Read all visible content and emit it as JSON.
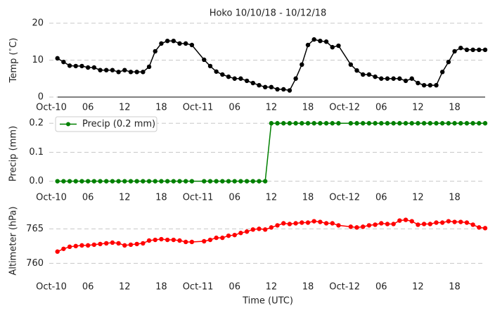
{
  "chart_data": [
    {
      "type": "line",
      "title": "Hoko 10/10/18 - 10/12/18",
      "ylabel": "Temp ($^\\circ$C)",
      "color": "#000000",
      "spine_bottom": true,
      "x": [
        1,
        2,
        3,
        4,
        5,
        6,
        7,
        8,
        9,
        10,
        11,
        12,
        13,
        14,
        15,
        16,
        17,
        18,
        19,
        20,
        21,
        22,
        23,
        25,
        26,
        27,
        28,
        29,
        30,
        31,
        32,
        33,
        34,
        35,
        36,
        37,
        38,
        39,
        40,
        41,
        42,
        43,
        44,
        45,
        46,
        47,
        49,
        50,
        51,
        52,
        53,
        54,
        55,
        56,
        57,
        58,
        59,
        60,
        61,
        62,
        63,
        64,
        65,
        66,
        67,
        68,
        69,
        70,
        71
      ],
      "values": [
        10.5,
        9.5,
        8.5,
        8.4,
        8.4,
        8.0,
        8.0,
        7.3,
        7.3,
        7.3,
        6.8,
        7.3,
        6.8,
        6.8,
        6.8,
        8.2,
        12.4,
        14.5,
        15.2,
        15.2,
        14.5,
        14.5,
        14.1,
        10.1,
        8.4,
        6.9,
        6.1,
        5.5,
        5.0,
        5.0,
        4.4,
        3.8,
        3.2,
        2.7,
        2.7,
        2.1,
        2.1,
        1.8,
        5.0,
        8.8,
        14.1,
        15.6,
        15.2,
        15.0,
        13.5,
        13.9,
        8.8,
        7.2,
        6.1,
        6.1,
        5.5,
        5.0,
        5.0,
        5.0,
        5.0,
        4.4,
        5.0,
        3.8,
        3.2,
        3.2,
        3.2,
        6.8,
        9.5,
        12.4,
        13.3,
        12.8,
        12.8,
        12.8,
        12.8
      ],
      "xlim": [
        0,
        71
      ],
      "xticks": [
        {
          "value": 0,
          "label": "Oct-10"
        },
        {
          "value": 6,
          "label": "06"
        },
        {
          "value": 12,
          "label": "12"
        },
        {
          "value": 18,
          "label": "18"
        },
        {
          "value": 24,
          "label": "Oct-11"
        },
        {
          "value": 30,
          "label": "06"
        },
        {
          "value": 36,
          "label": "12"
        },
        {
          "value": 42,
          "label": "18"
        },
        {
          "value": 48,
          "label": "Oct-12"
        },
        {
          "value": 54,
          "label": "06"
        },
        {
          "value": 60,
          "label": "12"
        },
        {
          "value": 66,
          "label": "18"
        }
      ],
      "ylim": [
        0,
        20
      ],
      "yticks": [
        0,
        10,
        20
      ],
      "grid": true
    },
    {
      "type": "line",
      "ylabel": "Precip (mm)",
      "legend": "upper left",
      "x": [
        1,
        2,
        3,
        4,
        5,
        6,
        7,
        8,
        9,
        10,
        11,
        12,
        13,
        14,
        15,
        16,
        17,
        18,
        19,
        20,
        21,
        22,
        23,
        25,
        26,
        27,
        28,
        29,
        30,
        31,
        32,
        33,
        34,
        35,
        36,
        37,
        38,
        39,
        40,
        41,
        42,
        43,
        44,
        45,
        46,
        47,
        49,
        50,
        51,
        52,
        53,
        54,
        55,
        56,
        57,
        58,
        59,
        60,
        61,
        62,
        63,
        64,
        65,
        66,
        67,
        68,
        69,
        70,
        71
      ],
      "series": [
        {
          "name": "Precip (0.2 mm)",
          "color": "#008000",
          "values": [
            0,
            0,
            0,
            0,
            0,
            0,
            0,
            0,
            0,
            0,
            0,
            0,
            0,
            0,
            0,
            0,
            0,
            0,
            0,
            0,
            0,
            0,
            0,
            0,
            0,
            0,
            0,
            0,
            0,
            0,
            0,
            0,
            0,
            0,
            0.2,
            0.2,
            0.2,
            0.2,
            0.2,
            0.2,
            0.2,
            0.2,
            0.2,
            0.2,
            0.2,
            0.2,
            0.2,
            0.2,
            0.2,
            0.2,
            0.2,
            0.2,
            0.2,
            0.2,
            0.2,
            0.2,
            0.2,
            0.2,
            0.2,
            0.2,
            0.2,
            0.2,
            0.2,
            0.2,
            0.2,
            0.2,
            0.2,
            0.2,
            0.2
          ]
        }
      ],
      "xlim": [
        0,
        71
      ],
      "xticks": [
        {
          "value": 0,
          "label": "Oct-10"
        },
        {
          "value": 6,
          "label": "06"
        },
        {
          "value": 12,
          "label": "12"
        },
        {
          "value": 18,
          "label": "18"
        },
        {
          "value": 24,
          "label": "Oct-11"
        },
        {
          "value": 30,
          "label": "06"
        },
        {
          "value": 36,
          "label": "12"
        },
        {
          "value": 42,
          "label": "18"
        },
        {
          "value": 48,
          "label": "Oct-12"
        },
        {
          "value": 54,
          "label": "06"
        },
        {
          "value": 60,
          "label": "12"
        },
        {
          "value": 66,
          "label": "18"
        }
      ],
      "ylim": [
        -0.03,
        0.22
      ],
      "yticks": [
        {
          "value": 0,
          "label": "0.0"
        },
        {
          "value": 0.1,
          "label": "0.1"
        },
        {
          "value": 0.2,
          "label": "0.2"
        }
      ],
      "grid": true
    },
    {
      "type": "line",
      "ylabel": "Altimeter (hPa)",
      "xlabel": "Time (UTC)",
      "color": "#ff0000",
      "x": [
        1,
        2,
        3,
        4,
        5,
        6,
        7,
        8,
        9,
        10,
        11,
        12,
        13,
        14,
        15,
        16,
        17,
        18,
        19,
        20,
        21,
        22,
        23,
        25,
        26,
        27,
        28,
        29,
        30,
        31,
        32,
        33,
        34,
        35,
        36,
        37,
        38,
        39,
        40,
        41,
        42,
        43,
        44,
        45,
        46,
        47,
        49,
        50,
        51,
        52,
        53,
        54,
        55,
        56,
        57,
        58,
        59,
        60,
        61,
        62,
        63,
        64,
        65,
        66,
        67,
        68,
        69,
        70,
        71
      ],
      "values": [
        761.7,
        762.1,
        762.4,
        762.5,
        762.6,
        762.6,
        762.7,
        762.8,
        762.9,
        763.0,
        762.9,
        762.6,
        762.7,
        762.8,
        762.9,
        763.3,
        763.4,
        763.5,
        763.4,
        763.4,
        763.3,
        763.1,
        763.1,
        763.2,
        763.4,
        763.7,
        763.7,
        764.0,
        764.1,
        764.4,
        764.6,
        764.9,
        765.0,
        764.9,
        765.2,
        765.5,
        765.8,
        765.7,
        765.8,
        765.9,
        765.9,
        766.1,
        766.0,
        765.8,
        765.8,
        765.5,
        765.3,
        765.2,
        765.3,
        765.5,
        765.6,
        765.8,
        765.7,
        765.7,
        766.2,
        766.3,
        766.1,
        765.6,
        765.7,
        765.7,
        765.9,
        765.9,
        766.1,
        766.0,
        766.0,
        765.9,
        765.6,
        765.2,
        765.1
      ],
      "xlim": [
        0,
        71
      ],
      "xticks": [
        {
          "value": 0,
          "label": "Oct-10"
        },
        {
          "value": 6,
          "label": "06"
        },
        {
          "value": 12,
          "label": "12"
        },
        {
          "value": 18,
          "label": "18"
        },
        {
          "value": 24,
          "label": "Oct-11"
        },
        {
          "value": 30,
          "label": "06"
        },
        {
          "value": 36,
          "label": "12"
        },
        {
          "value": 42,
          "label": "18"
        },
        {
          "value": 48,
          "label": "Oct-12"
        },
        {
          "value": 54,
          "label": "06"
        },
        {
          "value": 60,
          "label": "12"
        },
        {
          "value": 66,
          "label": "18"
        }
      ],
      "ylim": [
        757.9,
        768.6
      ],
      "yticks": [
        760,
        765
      ],
      "grid": true
    }
  ]
}
